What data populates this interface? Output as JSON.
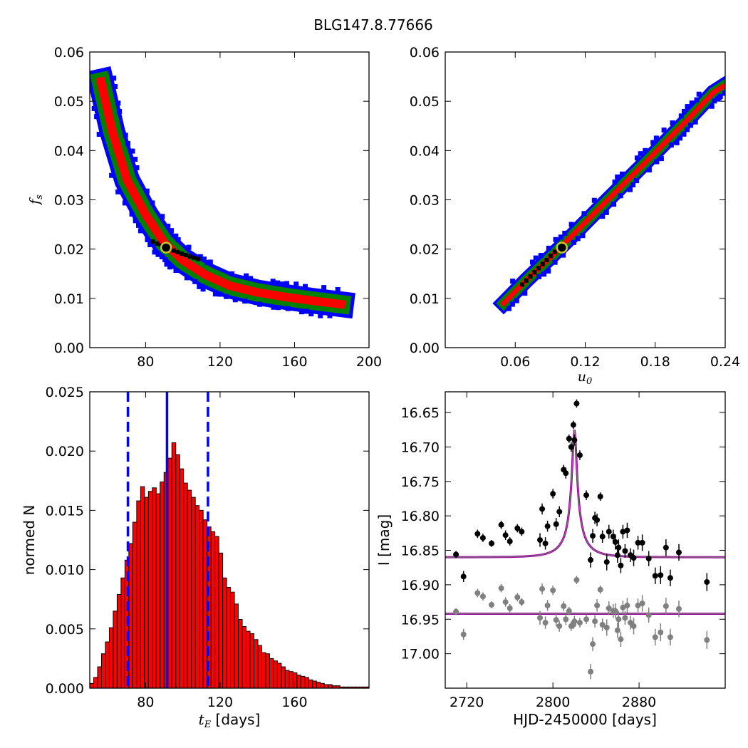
{
  "title": "BLG147.8.77666",
  "chart_data": [
    {
      "id": "fs_vs_tE",
      "type": "heatmap",
      "xlabel": "",
      "ylabel": "f_s",
      "xlim": [
        50,
        200
      ],
      "ylim": [
        0.0,
        0.06
      ],
      "xticks": [
        80,
        120,
        160,
        200
      ],
      "xtick_labels": [
        "80",
        "120",
        "160",
        "200"
      ],
      "yticks": [
        0.0,
        0.01,
        0.02,
        0.03,
        0.04,
        0.05,
        0.06
      ],
      "ytick_labels": [
        "0.00",
        "0.01",
        "0.02",
        "0.03",
        "0.04",
        "0.05",
        "0.06"
      ],
      "confidence_colors": {
        "outer": "#0000ff",
        "middle": "#008000",
        "inner": "#ff0000",
        "core": "#000000"
      },
      "best_fit": {
        "x": 91,
        "y": 0.0203
      },
      "ridge": [
        [
          56,
          0.054
        ],
        [
          62,
          0.044
        ],
        [
          70,
          0.034
        ],
        [
          80,
          0.027
        ],
        [
          90,
          0.0213
        ],
        [
          100,
          0.0177
        ],
        [
          112,
          0.0148
        ],
        [
          125,
          0.0126
        ],
        [
          140,
          0.0112
        ],
        [
          155,
          0.0103
        ],
        [
          170,
          0.0095
        ],
        [
          185,
          0.0088
        ]
      ]
    },
    {
      "id": "fs_vs_u0",
      "type": "heatmap",
      "xlabel": "u_0",
      "ylabel": "",
      "xlim": [
        0.0,
        0.24
      ],
      "ylim": [
        0.0,
        0.06
      ],
      "xticks": [
        0.06,
        0.12,
        0.18,
        0.24
      ],
      "xtick_labels": [
        "0.06",
        "0.12",
        "0.18",
        "0.24"
      ],
      "yticks": [
        0.0,
        0.01,
        0.02,
        0.03,
        0.04,
        0.05,
        0.06
      ],
      "ytick_labels": [
        "0.00",
        "0.01",
        "0.02",
        "0.03",
        "0.04",
        "0.05",
        "0.06"
      ],
      "confidence_colors": {
        "outer": "#0000ff",
        "middle": "#008000",
        "inner": "#ff0000",
        "core": "#000000"
      },
      "best_fit": {
        "x": 0.1,
        "y": 0.0203
      },
      "ridge": [
        [
          0.05,
          0.009
        ],
        [
          0.07,
          0.0138
        ],
        [
          0.09,
          0.0183
        ],
        [
          0.11,
          0.023
        ],
        [
          0.13,
          0.0278
        ],
        [
          0.15,
          0.0325
        ],
        [
          0.17,
          0.0372
        ],
        [
          0.19,
          0.042
        ],
        [
          0.21,
          0.0468
        ],
        [
          0.23,
          0.0518
        ],
        [
          0.238,
          0.053
        ]
      ]
    },
    {
      "id": "tE_histogram",
      "type": "bar",
      "xlabel": "t_E [days]",
      "ylabel": "normed N",
      "xlim": [
        50,
        200
      ],
      "ylim": [
        0.0,
        0.025
      ],
      "xticks": [
        80,
        120,
        160
      ],
      "xtick_labels": [
        "80",
        "120",
        "160"
      ],
      "yticks": [
        0.0,
        0.005,
        0.01,
        0.015,
        0.02,
        0.025
      ],
      "ytick_labels": [
        "0.000",
        "0.005",
        "0.010",
        "0.015",
        "0.020",
        "0.025"
      ],
      "bin_start": 50,
      "bin_width": 2.1,
      "values": [
        0.0004,
        0.0009,
        0.0018,
        0.0029,
        0.0039,
        0.0051,
        0.0065,
        0.0079,
        0.0093,
        0.0108,
        0.0122,
        0.014,
        0.0158,
        0.017,
        0.0161,
        0.0166,
        0.0169,
        0.0164,
        0.0174,
        0.0182,
        0.0194,
        0.0207,
        0.0197,
        0.0185,
        0.0173,
        0.0167,
        0.0161,
        0.0154,
        0.015,
        0.0142,
        0.0136,
        0.0132,
        0.0128,
        0.0114,
        0.0093,
        0.0085,
        0.0081,
        0.0071,
        0.0058,
        0.0052,
        0.0048,
        0.0046,
        0.0041,
        0.0036,
        0.003,
        0.0029,
        0.0025,
        0.0023,
        0.0021,
        0.0018,
        0.0015,
        0.0014,
        0.0013,
        0.0011,
        0.001,
        0.0009,
        0.0007,
        0.0006,
        0.0005,
        0.0004,
        0.0003,
        0.0003,
        0.0002,
        0.0002,
        0.0001,
        0.0001,
        0.0001,
        0.0001,
        0.0001,
        0.0001,
        0.0001,
        0.0001
      ],
      "bar_color": "#ff0000",
      "vlines": [
        {
          "x": 70.5,
          "style": "dashed",
          "color": "#0000ff"
        },
        {
          "x": 91.5,
          "style": "solid",
          "color": "#0000ff"
        },
        {
          "x": 113.5,
          "style": "dashed",
          "color": "#0000ff"
        }
      ]
    },
    {
      "id": "light_curve",
      "type": "scatter",
      "xlabel": "HJD-2450000 [days]",
      "ylabel": "I [mag]",
      "xlim": [
        2700,
        2960
      ],
      "ylim": [
        17.05,
        16.62
      ],
      "inverted_y": true,
      "xticks": [
        2720,
        2800,
        2880
      ],
      "xtick_labels": [
        "2720",
        "2800",
        "2880"
      ],
      "yticks": [
        16.65,
        16.7,
        16.75,
        16.8,
        16.85,
        16.9,
        16.95,
        17.0
      ],
      "ytick_labels": [
        "16.65",
        "16.70",
        "16.75",
        "16.80",
        "16.85",
        "16.90",
        "16.95",
        "17.00"
      ],
      "model": {
        "t0": 2820,
        "u0": 0.1,
        "tE": 23,
        "baseline": 16.86,
        "peak": 16.675,
        "color": "#990099"
      },
      "residual_baseline": {
        "y": 16.942,
        "color": "#990099"
      },
      "series": [
        {
          "color": "#000000",
          "points": [
            [
              2710,
              16.856,
              0.005
            ],
            [
              2717,
              16.888,
              0.008
            ],
            [
              2730,
              16.826,
              0.006
            ],
            [
              2735,
              16.832,
              0.006
            ],
            [
              2743,
              16.84,
              0.005
            ],
            [
              2752,
              16.813,
              0.006
            ],
            [
              2756,
              16.828,
              0.007
            ],
            [
              2760,
              16.837,
              0.006
            ],
            [
              2767,
              16.818,
              0.006
            ],
            [
              2771,
              16.823,
              0.006
            ],
            [
              2788,
              16.835,
              0.01
            ],
            [
              2790,
              16.79,
              0.008
            ],
            [
              2793,
              16.84,
              0.009
            ],
            [
              2795,
              16.815,
              0.008
            ],
            [
              2800,
              16.768,
              0.007
            ],
            [
              2803,
              16.812,
              0.009
            ],
            [
              2806,
              16.794,
              0.008
            ],
            [
              2810,
              16.733,
              0.007
            ],
            [
              2812,
              16.738,
              0.008
            ],
            [
              2815,
              16.688,
              0.006
            ],
            [
              2817,
              16.7,
              0.007
            ],
            [
              2819,
              16.668,
              0.006
            ],
            [
              2820,
              16.69,
              0.008
            ],
            [
              2822,
              16.637,
              0.006
            ],
            [
              2825,
              16.712,
              0.007
            ],
            [
              2831,
              16.77,
              0.007
            ],
            [
              2835,
              16.864,
              0.011
            ],
            [
              2837,
              16.829,
              0.01
            ],
            [
              2839,
              16.803,
              0.009
            ],
            [
              2841,
              16.806,
              0.009
            ],
            [
              2844,
              16.772,
              0.006
            ],
            [
              2846,
              16.83,
              0.009
            ],
            [
              2850,
              16.867,
              0.012
            ],
            [
              2852,
              16.823,
              0.01
            ],
            [
              2856,
              16.83,
              0.01
            ],
            [
              2858,
              16.838,
              0.011
            ],
            [
              2860,
              16.857,
              0.011
            ],
            [
              2861,
              16.846,
              0.012
            ],
            [
              2863,
              16.872,
              0.011
            ],
            [
              2865,
              16.823,
              0.01
            ],
            [
              2867,
              16.851,
              0.01
            ],
            [
              2869,
              16.821,
              0.011
            ],
            [
              2872,
              16.857,
              0.01
            ],
            [
              2875,
              16.861,
              0.012
            ],
            [
              2879,
              16.839,
              0.01
            ],
            [
              2883,
              16.839,
              0.012
            ],
            [
              2889,
              16.862,
              0.011
            ],
            [
              2895,
              16.887,
              0.012
            ],
            [
              2900,
              16.886,
              0.013
            ],
            [
              2905,
              16.846,
              0.012
            ],
            [
              2909,
              16.89,
              0.012
            ],
            [
              2917,
              16.853,
              0.012
            ],
            [
              2943,
              16.896,
              0.013
            ]
          ]
        },
        {
          "color": "#808080",
          "points": [
            [
              2710,
              16.939,
              0.005
            ],
            [
              2717,
              16.972,
              0.008
            ],
            [
              2730,
              16.912,
              0.006
            ],
            [
              2735,
              16.917,
              0.006
            ],
            [
              2743,
              16.929,
              0.005
            ],
            [
              2752,
              16.905,
              0.006
            ],
            [
              2756,
              16.925,
              0.007
            ],
            [
              2760,
              16.934,
              0.006
            ],
            [
              2767,
              16.918,
              0.006
            ],
            [
              2771,
              16.925,
              0.006
            ],
            [
              2788,
              16.948,
              0.01
            ],
            [
              2790,
              16.906,
              0.008
            ],
            [
              2793,
              16.955,
              0.009
            ],
            [
              2795,
              16.93,
              0.008
            ],
            [
              2800,
              16.908,
              0.007
            ],
            [
              2803,
              16.951,
              0.009
            ],
            [
              2806,
              16.96,
              0.008
            ],
            [
              2810,
              16.931,
              0.007
            ],
            [
              2812,
              16.95,
              0.008
            ],
            [
              2815,
              16.938,
              0.006
            ],
            [
              2817,
              16.96,
              0.007
            ],
            [
              2819,
              16.958,
              0.006
            ],
            [
              2820,
              16.953,
              0.008
            ],
            [
              2822,
              16.893,
              0.006
            ],
            [
              2825,
              16.955,
              0.007
            ],
            [
              2831,
              16.95,
              0.007
            ],
            [
              2835,
              17.026,
              0.011
            ],
            [
              2837,
              16.986,
              0.01
            ],
            [
              2839,
              16.953,
              0.009
            ],
            [
              2841,
              16.93,
              0.009
            ],
            [
              2844,
              16.907,
              0.006
            ],
            [
              2846,
              16.958,
              0.009
            ],
            [
              2850,
              16.962,
              0.012
            ],
            [
              2852,
              16.934,
              0.01
            ],
            [
              2856,
              16.938,
              0.01
            ],
            [
              2858,
              16.938,
              0.011
            ],
            [
              2860,
              16.966,
              0.011
            ],
            [
              2861,
              16.95,
              0.012
            ],
            [
              2863,
              16.979,
              0.011
            ],
            [
              2865,
              16.933,
              0.01
            ],
            [
              2867,
              16.948,
              0.01
            ],
            [
              2869,
              16.93,
              0.011
            ],
            [
              2872,
              16.955,
              0.01
            ],
            [
              2875,
              16.96,
              0.012
            ],
            [
              2879,
              16.93,
              0.01
            ],
            [
              2883,
              16.927,
              0.012
            ],
            [
              2889,
              16.944,
              0.011
            ],
            [
              2895,
              16.976,
              0.012
            ],
            [
              2900,
              16.969,
              0.013
            ],
            [
              2905,
              16.931,
              0.012
            ],
            [
              2909,
              16.976,
              0.012
            ],
            [
              2917,
              16.935,
              0.012
            ],
            [
              2943,
              16.98,
              0.013
            ]
          ]
        }
      ]
    }
  ]
}
